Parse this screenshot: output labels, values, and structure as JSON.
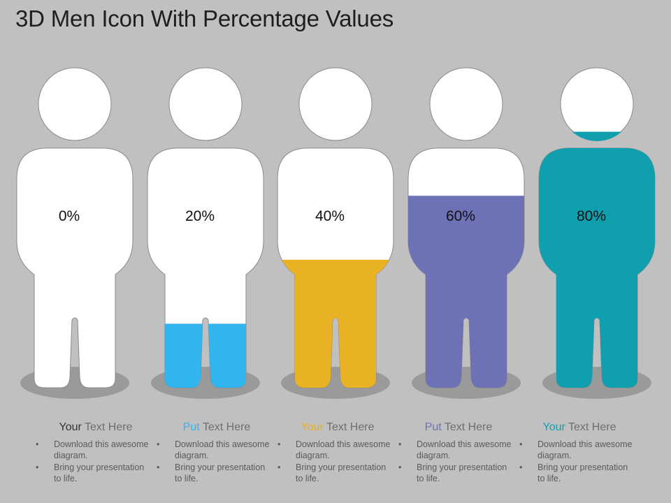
{
  "title": "3D Men Icon With Percentage Values",
  "figures": [
    {
      "percent_label": "0%",
      "fill_fraction": 0.0,
      "color": "#ffffff",
      "caption_first": "Your",
      "caption_rest": " Text Here",
      "bullets": [
        "Download this awesome diagram.",
        "Bring your presentation to life."
      ]
    },
    {
      "percent_label": "20%",
      "fill_fraction": 0.2,
      "color": "#31b5ee",
      "caption_first": "Put",
      "caption_rest": " Text Here",
      "bullets": [
        "Download this awesome diagram.",
        "Bring your presentation to life."
      ]
    },
    {
      "percent_label": "40%",
      "fill_fraction": 0.4,
      "color": "#e8b224",
      "caption_first": "Your",
      "caption_rest": " Text Here",
      "bullets": [
        "Download this awesome diagram.",
        "Bring your presentation to life."
      ]
    },
    {
      "percent_label": "60%",
      "fill_fraction": 0.6,
      "color": "#6d72b6",
      "caption_first": "Put",
      "caption_rest": " Text Here",
      "bullets": [
        "Download this awesome diagram.",
        "Bring your presentation to life."
      ]
    },
    {
      "percent_label": "80%",
      "fill_fraction": 0.8,
      "color": "#0f9fae",
      "caption_first": "Your",
      "caption_rest": " Text Here",
      "bullets": [
        "Download this awesome diagram.",
        "Bring your presentation to life."
      ]
    }
  ],
  "caption_first_color": "#333333"
}
